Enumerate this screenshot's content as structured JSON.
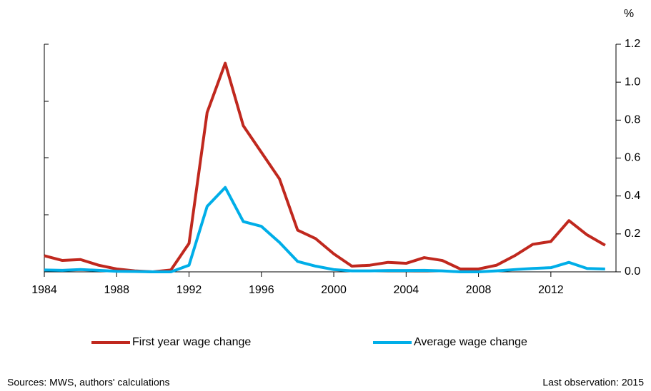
{
  "chart_data": {
    "type": "line",
    "unit_label": "%",
    "x": [
      1984,
      1985,
      1986,
      1987,
      1988,
      1989,
      1990,
      1991,
      1992,
      1993,
      1994,
      1995,
      1996,
      1997,
      1998,
      1999,
      2000,
      2001,
      2002,
      2003,
      2004,
      2005,
      2006,
      2007,
      2008,
      2009,
      2010,
      2011,
      2012,
      2013,
      2014,
      2015
    ],
    "series": [
      {
        "name": "First year wage change",
        "color": "#c0281e",
        "values": [
          0.085,
          0.06,
          0.065,
          0.035,
          0.015,
          0.005,
          0.0,
          0.01,
          0.15,
          0.84,
          1.1,
          0.77,
          0.63,
          0.49,
          0.22,
          0.175,
          0.095,
          0.03,
          0.035,
          0.05,
          0.045,
          0.075,
          0.06,
          0.015,
          0.015,
          0.035,
          0.085,
          0.145,
          0.16,
          0.27,
          0.195,
          0.14
        ]
      },
      {
        "name": "Average wage change",
        "color": "#00aee8",
        "values": [
          0.01,
          0.008,
          0.012,
          0.008,
          0.003,
          0.002,
          0.0,
          0.0,
          0.035,
          0.345,
          0.445,
          0.265,
          0.24,
          0.155,
          0.055,
          0.03,
          0.012,
          0.005,
          0.005,
          0.007,
          0.007,
          0.008,
          0.005,
          0.0,
          0.0,
          0.005,
          0.012,
          0.018,
          0.022,
          0.05,
          0.018,
          0.015
        ]
      }
    ],
    "xlim": [
      1984,
      2015.6
    ],
    "xticks": [
      1984,
      1988,
      1992,
      1996,
      2000,
      2004,
      2008,
      2012
    ],
    "ylim": [
      0,
      1.2
    ],
    "yticks": [
      {
        "value": 0,
        "label": "0.0"
      },
      {
        "value": 0.2,
        "label": "0.2"
      },
      {
        "value": 0.4,
        "label": "0.4"
      },
      {
        "value": 0.6,
        "label": "0.6"
      },
      {
        "value": 0.8,
        "label": "0.8"
      },
      {
        "value": 1,
        "label": "1.0"
      },
      {
        "value": 1.2,
        "label": "1.2"
      }
    ],
    "source": "Sources: MWS, authors' calculations",
    "note": "Last observation: 2015"
  }
}
